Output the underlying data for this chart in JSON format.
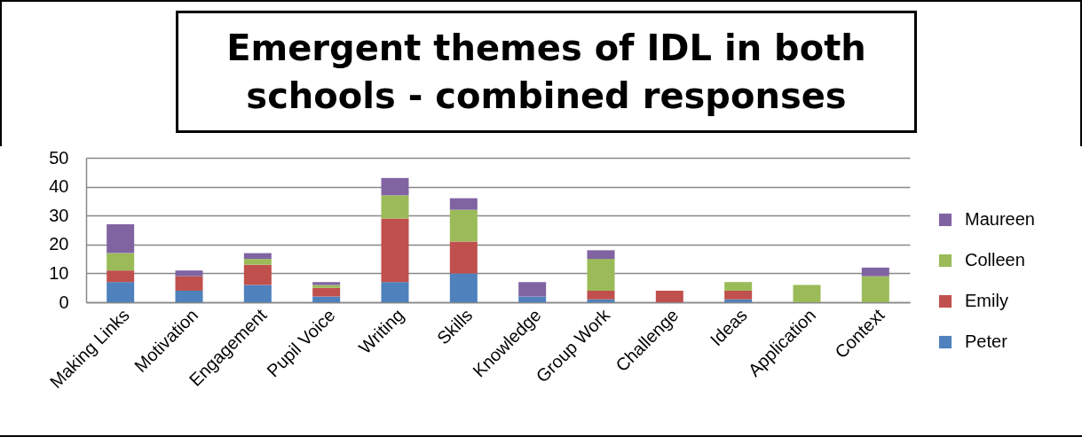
{
  "chart_data": {
    "type": "bar",
    "title": "Emergent themes of IDL in both schools - combined responses",
    "stacked": true,
    "categories": [
      "Making Links",
      "Motivation",
      "Engagement",
      "Pupil Voice",
      "Writing",
      "Skills",
      "Knowledge",
      "Group Work",
      "Challenge",
      "Ideas",
      "Application",
      "Context"
    ],
    "series": [
      {
        "name": "Peter",
        "color": "#4f81bd",
        "values": [
          7,
          4,
          6,
          2,
          7,
          10,
          2,
          1,
          0,
          1,
          0,
          0
        ]
      },
      {
        "name": "Emily",
        "color": "#c0504d",
        "values": [
          4,
          5,
          7,
          3,
          22,
          11,
          0,
          3,
          4,
          3,
          0,
          0
        ]
      },
      {
        "name": "Colleen",
        "color": "#9bbb59",
        "values": [
          6,
          0,
          2,
          1,
          8,
          11,
          0,
          11,
          0,
          3,
          6,
          9
        ]
      },
      {
        "name": "Maureen",
        "color": "#8064a2",
        "values": [
          10,
          2,
          2,
          1,
          6,
          4,
          5,
          3,
          0,
          0,
          0,
          3
        ]
      }
    ],
    "ylim": [
      0,
      50
    ],
    "yticks": [
      0,
      10,
      20,
      30,
      40,
      50
    ],
    "grid": "y",
    "legend": "right"
  }
}
